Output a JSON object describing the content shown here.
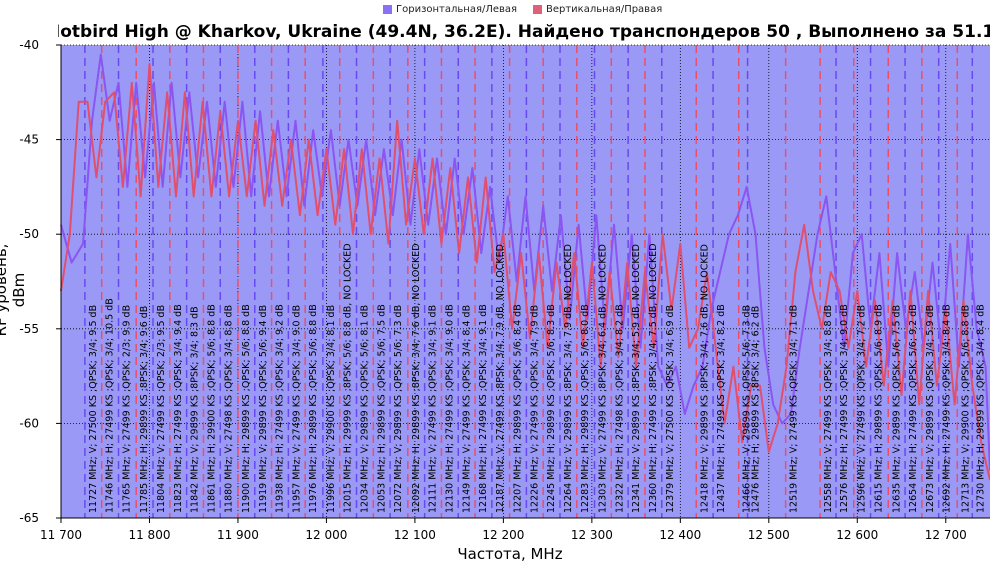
{
  "legend": {
    "horizontal": "Горизонтальная/Левая",
    "vertical": "Вертикальная/Правая"
  },
  "colors": {
    "plot_bg": "#9a9af6",
    "horizontal": "#8a55f2",
    "vertical": "#e0506e",
    "grid": "#000000"
  },
  "chart_data": {
    "type": "line",
    "title": "Hotbird High @ Kharkov, Ukraine (49.4N, 36.2E). Найдено транспондеров 50 , Выполнено за 51.1",
    "xlabel": "Частота, MHz",
    "ylabel": "RF уровень, dBm",
    "xlim": [
      11700,
      12750
    ],
    "ylim": [
      -65,
      -40
    ],
    "x_ticks": [
      11700,
      11800,
      11900,
      12000,
      12100,
      12200,
      12300,
      12400,
      12500,
      12600,
      12700
    ],
    "x_tick_labels": [
      "11 700",
      "11 800",
      "11 900",
      "12 000",
      "12 100",
      "12 200",
      "12 300",
      "12 400",
      "12 500",
      "12 600",
      "12 700"
    ],
    "y_ticks": [
      -40,
      -45,
      -50,
      -55,
      -60,
      -65
    ],
    "y_tick_labels": [
      "-40",
      "-45",
      "-50",
      "-55",
      "-60",
      "-65"
    ],
    "grid": true,
    "legend_position": "top",
    "series": [
      {
        "name": "Горизонтальная/Левая",
        "x": [
          11700,
          11712,
          11725,
          11735,
          11745,
          11755,
          11765,
          11775,
          11785,
          11795,
          11805,
          11815,
          11825,
          11835,
          11845,
          11855,
          11865,
          11875,
          11885,
          11895,
          11905,
          11915,
          11925,
          11935,
          11945,
          11955,
          11965,
          11975,
          11985,
          11995,
          12005,
          12015,
          12025,
          12035,
          12045,
          12055,
          12065,
          12075,
          12085,
          12095,
          12105,
          12115,
          12125,
          12135,
          12145,
          12155,
          12165,
          12175,
          12185,
          12195,
          12205,
          12215,
          12225,
          12235,
          12245,
          12255,
          12265,
          12275,
          12285,
          12295,
          12305,
          12315,
          12325,
          12335,
          12345,
          12355,
          12365,
          12375,
          12385,
          12395,
          12405,
          12415,
          12425,
          12435,
          12445,
          12455,
          12465,
          12475,
          12485,
          12495,
          12505,
          12515,
          12525,
          12535,
          12545,
          12555,
          12565,
          12575,
          12585,
          12595,
          12605,
          12615,
          12625,
          12635,
          12645,
          12655,
          12665,
          12675,
          12685,
          12695,
          12705,
          12715,
          12725,
          12735,
          12745,
          12750
        ],
        "y": [
          -49.5,
          -51.5,
          -50.5,
          -44,
          -40.5,
          -44,
          -42,
          -47.5,
          -42,
          -47,
          -42,
          -47.5,
          -42,
          -47,
          -42.5,
          -47,
          -43,
          -47.5,
          -43,
          -47.5,
          -43,
          -48,
          -43.5,
          -48,
          -44,
          -48,
          -44,
          -48.5,
          -44.5,
          -48,
          -44.5,
          -48.5,
          -45,
          -48.5,
          -45,
          -49,
          -45.5,
          -49,
          -45,
          -49.5,
          -45.5,
          -49.5,
          -46,
          -50,
          -46,
          -50,
          -46.5,
          -51,
          -47.5,
          -51.5,
          -48,
          -52.5,
          -48,
          -53,
          -48.5,
          -53,
          -49,
          -54.5,
          -49.5,
          -54.5,
          -49,
          -55,
          -49.5,
          -55,
          -50,
          -56,
          -50,
          -57,
          -58,
          -57,
          -59.5,
          -58,
          -57,
          -54,
          -52,
          -50,
          -49,
          -47.5,
          -50,
          -56,
          -59,
          -60,
          -59.5,
          -56,
          -53,
          -50,
          -48,
          -52,
          -56,
          -51,
          -50,
          -55,
          -51,
          -57,
          -51,
          -55,
          -52,
          -56,
          -51.5,
          -56,
          -50.5,
          -57,
          -50,
          -55,
          -57,
          -62.5
        ]
      },
      {
        "name": "Вертикальная/Правая",
        "x": [
          11700,
          11710,
          11720,
          11730,
          11740,
          11750,
          11760,
          11770,
          11780,
          11790,
          11800,
          11810,
          11820,
          11830,
          11840,
          11850,
          11860,
          11870,
          11880,
          11890,
          11900,
          11910,
          11920,
          11930,
          11940,
          11950,
          11960,
          11970,
          11980,
          11990,
          12000,
          12010,
          12020,
          12030,
          12040,
          12050,
          12060,
          12070,
          12080,
          12090,
          12100,
          12110,
          12120,
          12130,
          12140,
          12150,
          12160,
          12170,
          12180,
          12190,
          12200,
          12210,
          12220,
          12230,
          12240,
          12250,
          12260,
          12270,
          12280,
          12290,
          12300,
          12310,
          12320,
          12330,
          12340,
          12350,
          12360,
          12370,
          12380,
          12390,
          12400,
          12410,
          12420,
          12430,
          12440,
          12450,
          12460,
          12470,
          12480,
          12490,
          12500,
          12510,
          12520,
          12530,
          12540,
          12550,
          12560,
          12570,
          12580,
          12590,
          12600,
          12610,
          12620,
          12630,
          12640,
          12650,
          12660,
          12670,
          12680,
          12690,
          12700,
          12710,
          12720,
          12730,
          12740,
          12750
        ],
        "y": [
          -53,
          -50,
          -43,
          -43,
          -47,
          -43,
          -42.5,
          -47.5,
          -42,
          -48,
          -41,
          -47.5,
          -42.5,
          -48,
          -42.5,
          -48,
          -43,
          -48,
          -43.5,
          -48,
          -44,
          -48,
          -44,
          -48.5,
          -44.5,
          -48.5,
          -45,
          -49,
          -45,
          -49,
          -45.5,
          -49.5,
          -45.5,
          -50,
          -45.5,
          -50,
          -46,
          -50.5,
          -44,
          -49.5,
          -46,
          -50,
          -46,
          -50.5,
          -46.5,
          -51,
          -47,
          -51.5,
          -47,
          -52,
          -50,
          -55,
          -51,
          -55.5,
          -51,
          -56,
          -51.5,
          -55,
          -51,
          -56,
          -51.5,
          -57,
          -52,
          -56.5,
          -51.5,
          -57,
          -52,
          -56,
          -50,
          -54,
          -50.5,
          -56,
          -55,
          -52,
          -56,
          -60,
          -57,
          -61,
          -58,
          -58,
          -61.5,
          -60,
          -57,
          -52,
          -49.5,
          -53,
          -55,
          -52,
          -53,
          -56,
          -53,
          -57,
          -53.5,
          -58,
          -53.5,
          -58.5,
          -53,
          -59,
          -53,
          -58,
          -54,
          -59,
          -53.5,
          -58,
          -61,
          -63
        ]
      }
    ],
    "transponders": [
      {
        "freq": 11727,
        "pol": "H",
        "label": "11727 MHz; V; 27500 KS ;QPSK; 3/4; 9.5 dB"
      },
      {
        "freq": 11746,
        "pol": "V",
        "label": "11746 MHz; H; 27499 KS ;QPSK; 3/4; 10.5 dB"
      },
      {
        "freq": 11765,
        "pol": "H",
        "label": "11765 MHz; V; 27499 KS ;QPSK; 2/3; 9.9 dB"
      },
      {
        "freq": 11785,
        "pol": "V",
        "label": "11785 MHz; H; 29899 KS ;8PSK; 3/4; 9.6 dB"
      },
      {
        "freq": 11804,
        "pol": "H",
        "label": "11804 MHz; V; 27499 KS ;QPSK; 2/3; 9.5 dB"
      },
      {
        "freq": 11823,
        "pol": "V",
        "label": "11823 MHz; H; 27499 KS ;QPSK; 3/4; 9.4 dB"
      },
      {
        "freq": 11842,
        "pol": "H",
        "label": "11842 MHz; V; 29899 KS ;8PSK; 3/4; 8.3 dB"
      },
      {
        "freq": 11861,
        "pol": "V",
        "label": "11861 MHz; H; 29900 KS ;QPSK; 5/6; 8.8 dB"
      },
      {
        "freq": 11880,
        "pol": "H",
        "label": "11880 MHz; V; 27498 KS ;QPSK; 3/4; 8.8 dB"
      },
      {
        "freq": 11900,
        "pol": "V",
        "label": "11900 MHz; H; 29899 KS ;QPSK; 5/6; 8.8 dB"
      },
      {
        "freq": 11919,
        "pol": "H",
        "label": "11919 MHz; V; 29899 KS ;QPSK; 5/6; 9.4 dB"
      },
      {
        "freq": 11938,
        "pol": "V",
        "label": "11938 MHz; H; 27499 KS ;QPSK; 3/4; 9.2 dB"
      },
      {
        "freq": 11957,
        "pol": "H",
        "label": "11957 MHz; V; 27499 KS ;QPSK; 3/4; 9.0 dB"
      },
      {
        "freq": 11976,
        "pol": "V",
        "label": "11976 MHz; H; 29899 KS ;QPSK; 5/6; 8.8 dB"
      },
      {
        "freq": 11996,
        "pol": "H",
        "label": "11996 MHz; V; 29900 KS ;QPSK; 3/4; 8.1 dB"
      },
      {
        "freq": 12015,
        "pol": "V",
        "label": "12015 MHz; H; 29999 KS ;8PSK; 5/6; 8.8 dB, NO LOCKED"
      },
      {
        "freq": 12034,
        "pol": "H",
        "label": "12034 MHz; V; 29899 KS ;QPSK; 5/6; 8.1 dB"
      },
      {
        "freq": 12053,
        "pol": "V",
        "label": "12053 MHz; H; 29899 KS ;QPSK; 5/6; 7.5 dB"
      },
      {
        "freq": 12072,
        "pol": "H",
        "label": "12072 MHz; V; 29899 KS ;QPSK; 5/6; 7.3 dB"
      },
      {
        "freq": 12092,
        "pol": "V",
        "label": "12092 MHz; H; 29899 KS ;8PSK; 3/4; 7.6 dB, NO LOCKED"
      },
      {
        "freq": 12111,
        "pol": "H",
        "label": "12111 MHz; V; 27499 KS ;QPSK; 3/4; 9.1 dB"
      },
      {
        "freq": 12130,
        "pol": "V",
        "label": "12130 MHz; H; 27499 KS ;QPSK; 3/4; 9.0 dB"
      },
      {
        "freq": 12149,
        "pol": "H",
        "label": "12149 MHz; V; 27499 KS ;QPSK; 3/4; 8.4 dB"
      },
      {
        "freq": 12168,
        "pol": "V",
        "label": "12168 MHz; H; 27499 KS ;QPSK; 3/4; 9.1 dB"
      },
      {
        "freq": 12187,
        "pol": "H",
        "label": "12187 MHz; V; 27499 KS ;8PSK; 3/4; 7.9 dB, NO LOCKED"
      },
      {
        "freq": 12207,
        "pol": "V",
        "label": "12207 MHz; H; 29899 KS ;QPSK; 5/6; 8.4 dB"
      },
      {
        "freq": 12226,
        "pol": "H",
        "label": "12226 MHz; V; 27499 KS ;QPSK; 3/4; 7.9 dB"
      },
      {
        "freq": 12245,
        "pol": "V",
        "label": "12245 MHz; H; 29899 KS ;QPSK; 5/6; 8.3 dB"
      },
      {
        "freq": 12264,
        "pol": "H",
        "label": "12264 MHz; V; 29899 KS ;8PSK; 3/4; 7.9 dB, NO LOCKED"
      },
      {
        "freq": 12283,
        "pol": "V",
        "label": "12283 MHz; H; 29899 KS ;QPSK; 5/6; 8.0 dB"
      },
      {
        "freq": 12303,
        "pol": "H",
        "label": "12303 MHz; V; 27499 KS ;8PSK; 3/4; 6.4 dB, NO LOCKED"
      },
      {
        "freq": 12322,
        "pol": "V",
        "label": "12322 MHz; H; 27498 KS ;QPSK; 3/4; 8.2 dB"
      },
      {
        "freq": 12341,
        "pol": "H",
        "label": "12341 MHz; V; 29899 KS ;8PSK; 3/4; 5.9 dB, NO LOCKED"
      },
      {
        "freq": 12360,
        "pol": "V",
        "label": "12360 MHz; H; 27499 KS ;8PSK; 3/4; 7.5 dB, NO LOCKED"
      },
      {
        "freq": 12379,
        "pol": "H",
        "label": "12379 MHz; V; 27500 KS ;QPSK; 3/4; 6.9 dB"
      },
      {
        "freq": 12418,
        "pol": "V",
        "label": "12418 MHz; V; 29899 KS ;8PSK; 3/4; 7.6 dB, NO LOCKED"
      },
      {
        "freq": 12437,
        "pol": "H",
        "label": "12437 MHz; H; 27499 KS ;QPSK; 3/4; 8.2 dB"
      },
      {
        "freq": 12466,
        "pol": "V",
        "label": "12466 MHz; V; 29899 KS ;QPSK; 5/6; 7.3 dB"
      },
      {
        "freq": 12476,
        "pol": "H",
        "label": "12476 MHz; H; 29899 KS ;8PSK; 3/4; 6.2 dB"
      },
      {
        "freq": 12519,
        "pol": "V",
        "label": "12519 MHz; V; 27499 KS ;QPSK; 3/4; 7.1 dB"
      },
      {
        "freq": 12558,
        "pol": "V",
        "label": "12558 MHz; V; 27499 KS ;QPSK; 3/4; 8.8 dB"
      },
      {
        "freq": 12576,
        "pol": "H",
        "label": "12576 MHz; H; 27499 KS ;QPSK; 3/4; 9.0 dB"
      },
      {
        "freq": 12596,
        "pol": "V",
        "label": "12596 MHz; V; 27499 KS ;QPSK; 3/4; 7.2 dB"
      },
      {
        "freq": 12615,
        "pol": "H",
        "label": "12615 MHz; H; 29899 KS ;QPSK; 5/6; 8.9 dB"
      },
      {
        "freq": 12635,
        "pol": "V",
        "label": "12635 MHz; V; 29899 KS ;QPSK; 5/6; 7.5 dB"
      },
      {
        "freq": 12654,
        "pol": "H",
        "label": "12654 MHz; H; 27499 KS ;QPSK; 5/6; 9.2 dB"
      },
      {
        "freq": 12673,
        "pol": "V",
        "label": "12673 MHz; V; 29899 KS ;QPSK; 3/4; 5.9 dB"
      },
      {
        "freq": 12692,
        "pol": "H",
        "label": "12692 MHz; H; 27499 KS ;QPSK; 3/4; 8.4 dB"
      },
      {
        "freq": 12713,
        "pol": "V",
        "label": "12713 MHz; V; 29900 KS ;QPSK; 5/6; 8.8 dB"
      },
      {
        "freq": 12730,
        "pol": "H",
        "label": "12730 MHz; H; 29899 KS ;QPSK; 3/4; 8.4 dB"
      }
    ]
  }
}
